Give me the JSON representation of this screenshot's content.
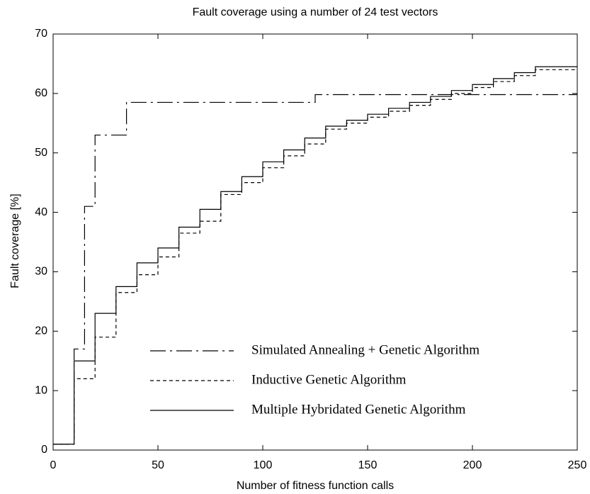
{
  "chart_data": {
    "type": "step",
    "title": "Fault coverage using a number of 24 test vectors",
    "x_label": "Number of fitness function calls",
    "y_label": "Fault coverage  [%]",
    "xlim": [
      0,
      250
    ],
    "xticks": [
      0,
      50,
      100,
      150,
      200,
      250
    ],
    "ylim": [
      0,
      70
    ],
    "yticks": [
      0,
      10,
      20,
      30,
      40,
      50,
      60,
      70
    ],
    "legend": "lower right",
    "series": [
      {
        "name": "Simulated Annealing + Genetic Algorithm",
        "color": "#000000",
        "linestyle": "dashdot",
        "x": [
          0,
          10,
          15,
          20,
          35,
          125,
          250
        ],
        "values": [
          1,
          17,
          41,
          53,
          58.5,
          59.8,
          59.8
        ]
      },
      {
        "name": "Inductive Genetic Algorithm",
        "color": "#000000",
        "linestyle": "dashed",
        "x": [
          0,
          10,
          20,
          30,
          40,
          50,
          60,
          70,
          80,
          90,
          100,
          110,
          120,
          130,
          140,
          150,
          160,
          170,
          180,
          190,
          200,
          210,
          220,
          230,
          250
        ],
        "values": [
          1,
          12,
          19,
          26.5,
          29.5,
          32.5,
          36.5,
          38.5,
          43,
          45,
          47.5,
          49.5,
          51.5,
          54,
          55,
          56,
          57,
          58,
          59,
          60,
          61,
          62,
          63,
          64,
          64
        ]
      },
      {
        "name": "Multiple Hybridated Genetic Algorithm",
        "color": "#000000",
        "linestyle": "solid",
        "x": [
          0,
          10,
          20,
          30,
          40,
          50,
          60,
          70,
          80,
          90,
          100,
          110,
          120,
          130,
          140,
          150,
          160,
          170,
          180,
          190,
          200,
          210,
          220,
          230,
          250
        ],
        "values": [
          1,
          15,
          23,
          27.5,
          31.5,
          34,
          37.5,
          40.5,
          43.5,
          46,
          48.5,
          50.5,
          52.5,
          54.5,
          55.5,
          56.5,
          57.5,
          58.5,
          59.5,
          60.5,
          61.5,
          62.5,
          63.5,
          64.5,
          64.5
        ]
      }
    ]
  }
}
